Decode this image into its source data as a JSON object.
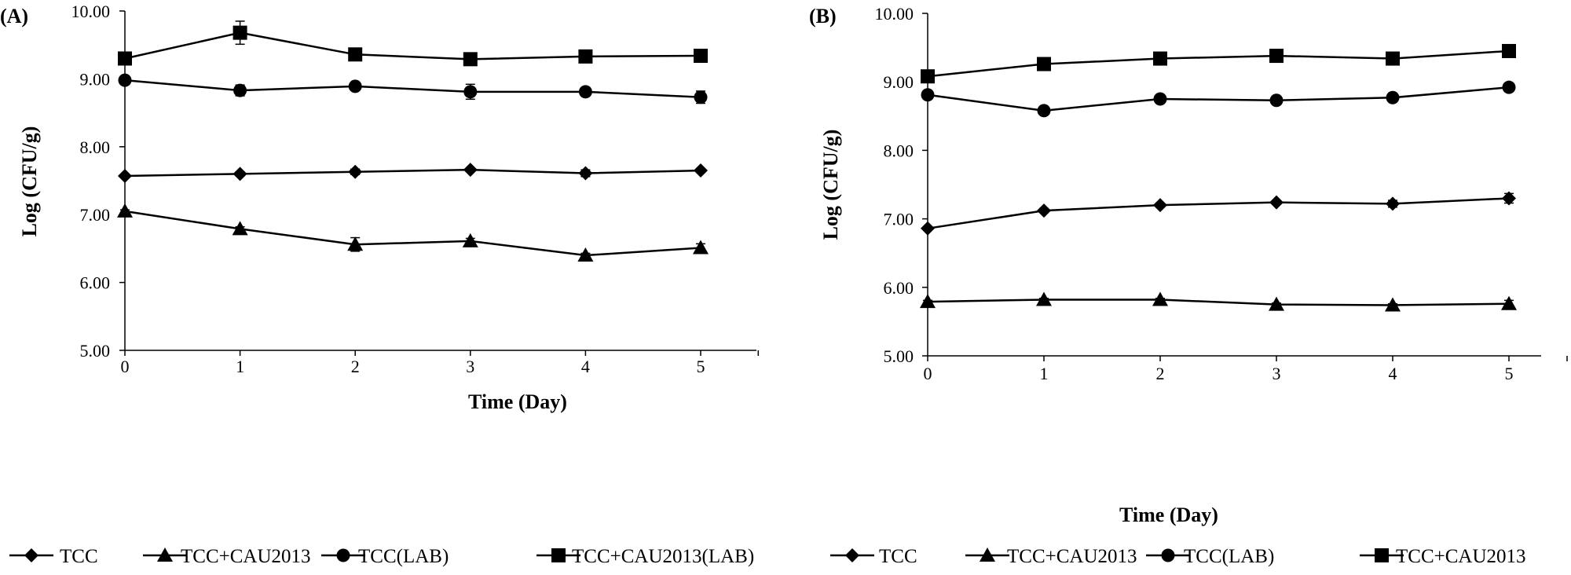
{
  "chart_data": [
    {
      "type": "line",
      "panel_label": "(A)",
      "xlabel": "Time (Day)",
      "ylabel": "Log (CFU/g)",
      "x": [
        0,
        1,
        2,
        3,
        4,
        5
      ],
      "xlim": [
        0,
        5.5
      ],
      "ylim": [
        5.0,
        10.0
      ],
      "y_ticks": [
        "5.00",
        "6.00",
        "7.00",
        "8.00",
        "9.00",
        "10.00"
      ],
      "x_ticks": [
        "0",
        "1",
        "2",
        "3",
        "4",
        "5"
      ],
      "grid": false,
      "legend_position": "bottom",
      "series": [
        {
          "name": "TCC",
          "marker": "diamond",
          "values": [
            7.57,
            7.6,
            7.63,
            7.66,
            7.61,
            7.65
          ],
          "errors": [
            0.02,
            0.03,
            0.04,
            0.02,
            0.05,
            0.03
          ]
        },
        {
          "name": "TCC+CAU2013",
          "marker": "triangle",
          "values": [
            7.05,
            6.79,
            6.56,
            6.61,
            6.4,
            6.51
          ],
          "errors": [
            0.02,
            0.03,
            0.1,
            0.04,
            0.03,
            0.06
          ]
        },
        {
          "name": "TCC(LAB)",
          "marker": "circle",
          "values": [
            8.98,
            8.83,
            8.89,
            8.81,
            8.81,
            8.73
          ],
          "errors": [
            0.02,
            0.08,
            0.03,
            0.11,
            0.02,
            0.09
          ]
        },
        {
          "name": "TCC+CAU2013(LAB)",
          "marker": "square",
          "values": [
            9.3,
            9.68,
            9.36,
            9.29,
            9.33,
            9.34
          ],
          "errors": [
            0.03,
            0.17,
            0.02,
            0.03,
            0.02,
            0.02
          ]
        }
      ]
    },
    {
      "type": "line",
      "panel_label": "(B)",
      "xlabel": "Time (Day)",
      "ylabel": "Log (CFU/g)",
      "x": [
        0,
        1,
        2,
        3,
        4,
        5
      ],
      "xlim": [
        0,
        5.5
      ],
      "ylim": [
        5.0,
        10.0
      ],
      "y_ticks": [
        "5.00",
        "6.00",
        "7.00",
        "8.00",
        "9.00",
        "10.00"
      ],
      "x_ticks": [
        "0",
        "1",
        "2",
        "3",
        "4",
        "5"
      ],
      "grid": false,
      "legend_position": "bottom",
      "series": [
        {
          "name": "TCC",
          "marker": "diamond",
          "values": [
            6.86,
            7.12,
            7.2,
            7.24,
            7.22,
            7.3
          ],
          "errors": [
            0.02,
            0.03,
            0.03,
            0.02,
            0.05,
            0.07
          ]
        },
        {
          "name": "TCC+CAU2013",
          "marker": "triangle",
          "values": [
            5.79,
            5.82,
            5.82,
            5.75,
            5.74,
            5.76
          ],
          "errors": [
            0.02,
            0.02,
            0.02,
            0.02,
            0.02,
            0.05
          ]
        },
        {
          "name": "TCC(LAB)",
          "marker": "circle",
          "values": [
            8.81,
            8.58,
            8.75,
            8.73,
            8.77,
            8.92
          ],
          "errors": [
            0.02,
            0.02,
            0.02,
            0.02,
            0.06,
            0.03
          ]
        },
        {
          "name": "TCC+CAU2013",
          "marker": "square",
          "values": [
            9.08,
            9.26,
            9.34,
            9.38,
            9.34,
            9.45
          ],
          "errors": [
            0.02,
            0.05,
            0.02,
            0.02,
            0.04,
            0.03
          ]
        }
      ]
    }
  ]
}
